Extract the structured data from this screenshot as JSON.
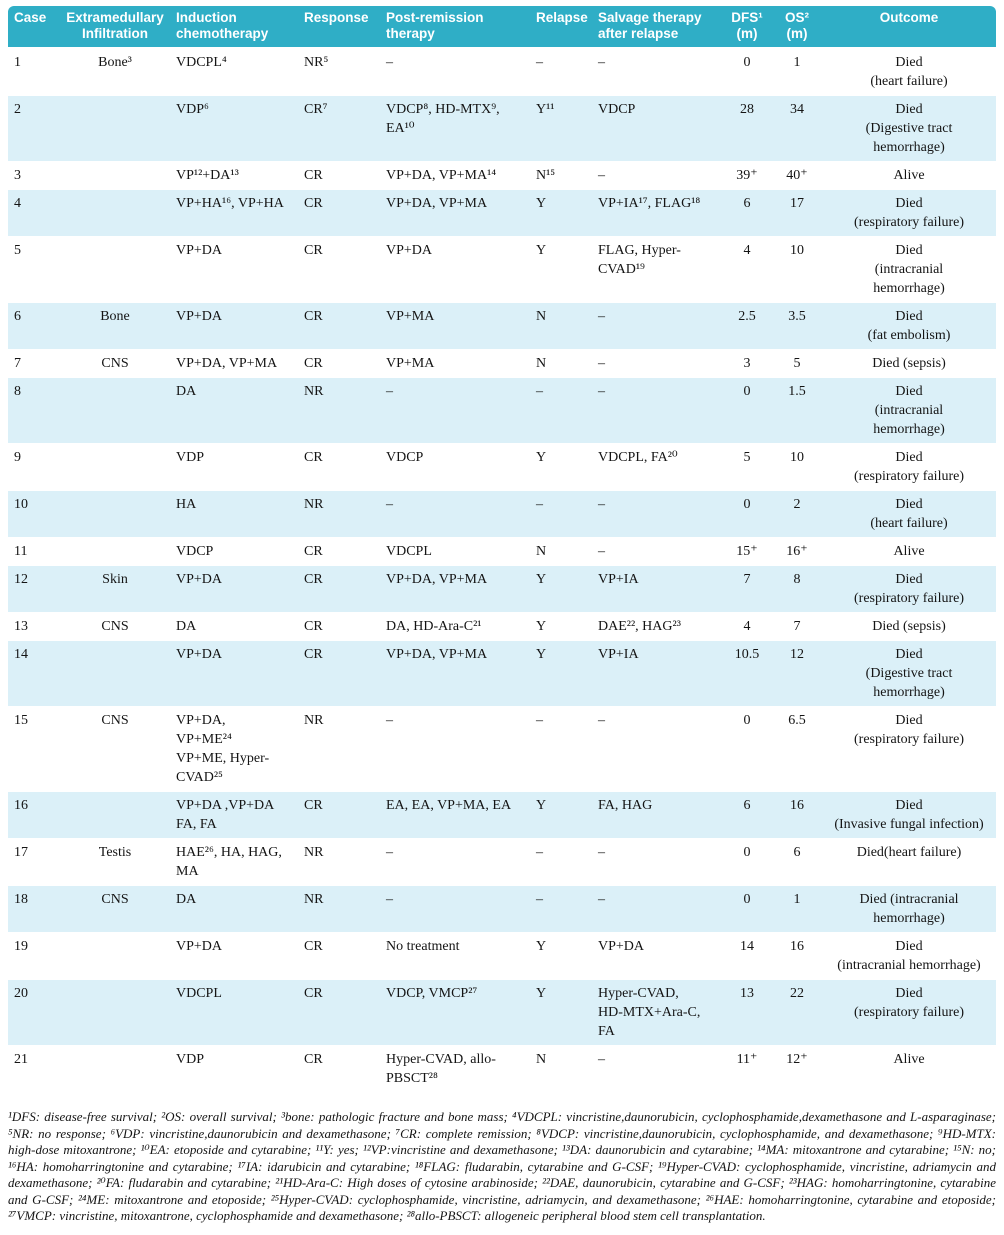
{
  "colors": {
    "header_bg": "#2FAEC6",
    "row_alt_bg": "#DBF0F8"
  },
  "table": {
    "columns": [
      {
        "key": "case",
        "label": "Case"
      },
      {
        "key": "infiltration",
        "label": "Extramedullary\nInfiltration"
      },
      {
        "key": "induction",
        "label": "Induction\nchemotherapy"
      },
      {
        "key": "response",
        "label": "Response"
      },
      {
        "key": "post_remission",
        "label": "Post-remission\ntherapy"
      },
      {
        "key": "relapse",
        "label": "Relapse"
      },
      {
        "key": "salvage",
        "label": "Salvage therapy\nafter relapse"
      },
      {
        "key": "dfs",
        "label": "DFS¹\n(m)"
      },
      {
        "key": "os",
        "label": "OS²\n(m)"
      },
      {
        "key": "outcome",
        "label": "Outcome"
      }
    ],
    "rows": [
      [
        "1",
        "Bone³",
        "VDCPL⁴",
        "NR⁵",
        "–",
        "–",
        "–",
        "0",
        "1",
        "Died\n(heart failure)"
      ],
      [
        "2",
        "",
        "VDP⁶",
        "CR⁷",
        "VDCP⁸, HD-MTX⁹, EA¹⁰",
        "Y¹¹",
        "VDCP",
        "28",
        "34",
        "Died\n(Digestive tract\nhemorrhage)"
      ],
      [
        "3",
        "",
        "VP¹²+DA¹³",
        "CR",
        "VP+DA, VP+MA¹⁴",
        "N¹⁵",
        "–",
        "39⁺",
        "40⁺",
        "Alive"
      ],
      [
        "4",
        "",
        "VP+HA¹⁶, VP+HA",
        "CR",
        "VP+DA, VP+MA",
        "Y",
        "VP+IA¹⁷, FLAG¹⁸",
        "6",
        "17",
        "Died\n(respiratory failure)"
      ],
      [
        "5",
        "",
        "VP+DA",
        "CR",
        "VP+DA",
        "Y",
        "FLAG, Hyper-CVAD¹⁹",
        "4",
        "10",
        "Died\n(intracranial\nhemorrhage)"
      ],
      [
        "6",
        "Bone",
        "VP+DA",
        "CR",
        "VP+MA",
        "N",
        "–",
        "2.5",
        "3.5",
        "Died\n(fat embolism)"
      ],
      [
        "7",
        "CNS",
        "VP+DA, VP+MA",
        "CR",
        "VP+MA",
        "N",
        "–",
        "3",
        "5",
        "Died (sepsis)"
      ],
      [
        "8",
        "",
        "DA",
        "NR",
        "–",
        "–",
        "–",
        "0",
        "1.5",
        "Died\n(intracranial\nhemorrhage)"
      ],
      [
        "9",
        "",
        "VDP",
        "CR",
        "VDCP",
        "Y",
        "VDCPL, FA²⁰",
        "5",
        "10",
        "Died\n(respiratory failure)"
      ],
      [
        "10",
        "",
        "HA",
        "NR",
        "–",
        "–",
        "–",
        "0",
        "2",
        "Died\n(heart failure)"
      ],
      [
        "11",
        "",
        "VDCP",
        "CR",
        "VDCPL",
        "N",
        "–",
        "15⁺",
        "16⁺",
        "Alive"
      ],
      [
        "12",
        "Skin",
        "VP+DA",
        "CR",
        "VP+DA, VP+MA",
        "Y",
        "VP+IA",
        "7",
        "8",
        "Died\n(respiratory failure)"
      ],
      [
        "13",
        "CNS",
        "DA",
        "CR",
        "DA, HD-Ara-C²¹",
        "Y",
        "DAE²², HAG²³",
        "4",
        "7",
        "Died (sepsis)"
      ],
      [
        "14",
        "",
        "VP+DA",
        "CR",
        "VP+DA, VP+MA",
        "Y",
        "VP+IA",
        "10.5",
        "12",
        "Died\n(Digestive tract\nhemorrhage)"
      ],
      [
        "15",
        "CNS",
        "VP+DA,\nVP+ME²⁴\nVP+ME, Hyper-CVAD²⁵",
        "NR",
        "–",
        "–",
        "–",
        "0",
        "6.5",
        "Died\n(respiratory failure)"
      ],
      [
        "16",
        "",
        "VP+DA ,VP+DA\nFA, FA",
        "CR",
        "EA, EA, VP+MA, EA",
        "Y",
        "FA, HAG",
        "6",
        "16",
        "Died\n(Invasive fungal infection)"
      ],
      [
        "17",
        "Testis",
        "HAE²⁶, HA, HAG, MA",
        "NR",
        "–",
        "–",
        "–",
        "0",
        "6",
        "Died(heart failure)"
      ],
      [
        "18",
        "CNS",
        "DA",
        "NR",
        "–",
        "–",
        "–",
        "0",
        "1",
        "Died (intracranial\nhemorrhage)"
      ],
      [
        "19",
        "",
        "VP+DA",
        "CR",
        "No treatment",
        "Y",
        "VP+DA",
        "14",
        "16",
        "Died\n(intracranial hemorrhage)"
      ],
      [
        "20",
        "",
        "VDCPL",
        "CR",
        "VDCP, VMCP²⁷",
        "Y",
        "Hyper-CVAD,\nHD-MTX+Ara-C, FA",
        "13",
        "22",
        "Died\n(respiratory failure)"
      ],
      [
        "21",
        "",
        "VDP",
        "CR",
        "Hyper-CVAD, allo-PBSCT²⁸",
        "N",
        "–",
        "11⁺",
        "12⁺",
        "Alive"
      ]
    ]
  },
  "footnotes": "¹DFS: disease-free survival; ²OS: overall survival; ³bone: pathologic fracture and bone mass; ⁴VDCPL: vincristine,daunorubicin, cyclophosphamide,dexamethasone and L-asparaginase; ⁵NR: no response; ⁶VDP: vincristine,daunorubicin and dexamethasone; ⁷CR: complete remission; ⁸VDCP: vincristine,daunorubicin, cyclophosphamide, and dexamethasone; ⁹HD-MTX: high-dose mitoxantrone; ¹⁰EA: etoposide and cytarabine; ¹¹Y: yes; ¹²VP:vincristine and dexamethasone; ¹³DA: daunorubicin and cytarabine; ¹⁴MA: mitoxantrone and cytarabine; ¹⁵N: no; ¹⁶HA: homoharringtonine and cytarabine; ¹⁷IA: idarubicin and cytarabine; ¹⁸FLAG: fludarabin, cytarabine and G-CSF; ¹⁹Hyper-CVAD: cyclophosphamide, vincristine, adriamycin and dexamethasone; ²⁰FA: fludarabin and cytarabine; ²¹HD-Ara-C: High doses of cytosine arabinoside; ²²DAE, daunorubicin, cytarabine and G-CSF; ²³HAG: homoharringtonine, cytarabine and G-CSF; ²⁴ME: mitoxantrone and etoposide; ²⁵Hyper-CVAD: cyclophosphamide, vincristine, adriamycin, and dexamethasone; ²⁶HAE: homoharringtonine, cytarabine and etoposide; ²⁷VMCP: vincristine, mitoxantrone, cyclophosphamide and dexamethasone; ²⁸allo-PBSCT: allogeneic peripheral blood stem cell transplantation."
}
